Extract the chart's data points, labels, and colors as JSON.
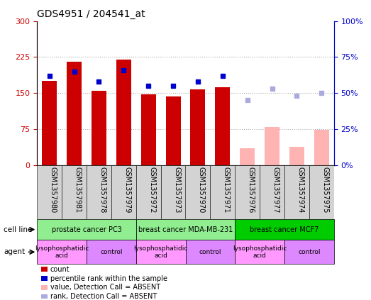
{
  "title": "GDS4951 / 204541_at",
  "samples": [
    "GSM1357980",
    "GSM1357981",
    "GSM1357978",
    "GSM1357979",
    "GSM1357972",
    "GSM1357973",
    "GSM1357970",
    "GSM1357971",
    "GSM1357976",
    "GSM1357977",
    "GSM1357974",
    "GSM1357975"
  ],
  "bar_values": [
    175,
    215,
    155,
    220,
    147,
    143,
    158,
    162,
    35,
    80,
    38,
    73
  ],
  "bar_colors": [
    "#cc0000",
    "#cc0000",
    "#cc0000",
    "#cc0000",
    "#cc0000",
    "#cc0000",
    "#cc0000",
    "#cc0000",
    "#ffb3b3",
    "#ffb3b3",
    "#ffb3b3",
    "#ffb3b3"
  ],
  "rank_values": [
    62,
    65,
    58,
    66,
    55,
    55,
    58,
    62,
    null,
    null,
    null,
    null
  ],
  "rank_absent_values": [
    null,
    null,
    null,
    null,
    null,
    null,
    null,
    null,
    45,
    53,
    48,
    50
  ],
  "ylim_left": [
    0,
    300
  ],
  "ylim_right": [
    0,
    100
  ],
  "yticks_left": [
    0,
    75,
    150,
    225,
    300
  ],
  "yticks_right": [
    0,
    25,
    50,
    75,
    100
  ],
  "ytick_labels_left": [
    "0",
    "75",
    "150",
    "225",
    "300"
  ],
  "ytick_labels_right": [
    "0%",
    "25%",
    "50%",
    "75%",
    "100%"
  ],
  "cell_lines": [
    {
      "label": "prostate cancer PC3",
      "start": 0,
      "end": 4,
      "color": "#90ee90"
    },
    {
      "label": "breast cancer MDA-MB-231",
      "start": 4,
      "end": 8,
      "color": "#90ee90"
    },
    {
      "label": "breast cancer MCF7",
      "start": 8,
      "end": 12,
      "color": "#00cc00"
    }
  ],
  "agents": [
    {
      "label": "lysophosphatidic\nacid",
      "start": 0,
      "end": 2,
      "color": "#ff99ff"
    },
    {
      "label": "control",
      "start": 2,
      "end": 4,
      "color": "#dd88ff"
    },
    {
      "label": "lysophosphatidic\nacid",
      "start": 4,
      "end": 6,
      "color": "#ff99ff"
    },
    {
      "label": "control",
      "start": 6,
      "end": 8,
      "color": "#dd88ff"
    },
    {
      "label": "lysophosphatidic\nacid",
      "start": 8,
      "end": 10,
      "color": "#ff99ff"
    },
    {
      "label": "control",
      "start": 10,
      "end": 12,
      "color": "#dd88ff"
    }
  ],
  "legend_items": [
    {
      "label": "count",
      "color": "#cc0000",
      "marker": "s"
    },
    {
      "label": "percentile rank within the sample",
      "color": "#0000cc",
      "marker": "s"
    },
    {
      "label": "value, Detection Call = ABSENT",
      "color": "#ffb3b3",
      "marker": "s"
    },
    {
      "label": "rank, Detection Call = ABSENT",
      "color": "#aaaadd",
      "marker": "s"
    }
  ],
  "left_axis_color": "#cc0000",
  "right_axis_color": "#0000cc",
  "background_color": "#ffffff",
  "plot_bg_color": "#ffffff",
  "grid_color": "#aaaaaa",
  "bar_width": 0.6
}
